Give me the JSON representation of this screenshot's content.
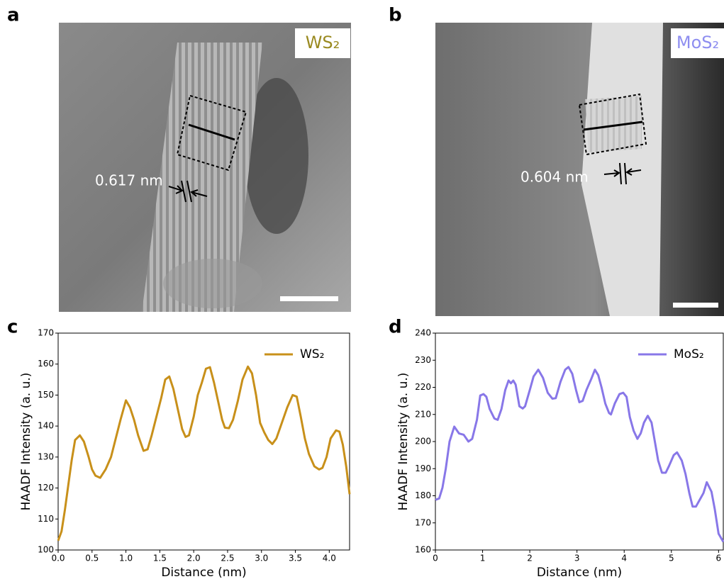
{
  "figure": {
    "panels": [
      {
        "letter": "a",
        "label": "WS₂",
        "measurement": "0.617 nm"
      },
      {
        "letter": "b",
        "label": "MoS₂",
        "measurement": "0.604 nm"
      }
    ]
  },
  "chart_data": [
    {
      "type": "line",
      "panel": "c",
      "xlabel": "Distance (nm)",
      "ylabel": "HAADF Intensity (a. u.)",
      "xlim": [
        0,
        4.3
      ],
      "ylim": [
        100,
        170
      ],
      "xticks": [
        {
          "value": 0,
          "label": "0.0"
        },
        0.5,
        {
          "value": 1,
          "label": "1.0"
        },
        1.5,
        {
          "value": 2,
          "label": "2.0"
        },
        2.5,
        {
          "value": 3,
          "label": "3.0"
        },
        3.5,
        {
          "value": 4,
          "label": "4.0"
        }
      ],
      "yticks": [
        100,
        110,
        120,
        130,
        140,
        150,
        160,
        170
      ],
      "grid": false,
      "legend": "upper right",
      "x": [
        0,
        0.05,
        0.1,
        0.15,
        0.2,
        0.25,
        0.32,
        0.38,
        0.45,
        0.5,
        0.55,
        0.62,
        0.7,
        0.78,
        0.85,
        0.92,
        1.0,
        1.06,
        1.12,
        1.18,
        1.26,
        1.32,
        1.38,
        1.45,
        1.52,
        1.58,
        1.64,
        1.7,
        1.76,
        1.83,
        1.88,
        1.93,
        2.0,
        2.06,
        2.12,
        2.18,
        2.24,
        2.3,
        2.36,
        2.42,
        2.46,
        2.52,
        2.58,
        2.65,
        2.72,
        2.8,
        2.86,
        2.92,
        2.98,
        3.04,
        3.1,
        3.16,
        3.22,
        3.3,
        3.38,
        3.46,
        3.52,
        3.58,
        3.64,
        3.7,
        3.78,
        3.85,
        3.9,
        3.96,
        4.02,
        4.1,
        4.15,
        4.2,
        4.25,
        4.3
      ],
      "series": [
        {
          "name": "WS₂",
          "color": "#c8901a",
          "values": [
            103,
            106,
            113,
            121,
            129,
            135.5,
            137,
            135,
            130,
            126,
            124,
            123.3,
            126,
            130,
            136,
            142,
            148.3,
            146,
            142,
            137,
            132,
            132.5,
            137,
            143,
            149,
            155,
            156,
            152,
            146,
            139,
            136.5,
            137,
            143,
            150,
            154,
            158.5,
            159,
            154,
            148,
            142,
            139.5,
            139.3,
            142,
            148,
            155,
            159.2,
            157,
            150,
            141,
            138,
            135.5,
            134.2,
            136,
            141,
            146,
            150,
            149.5,
            143,
            136,
            131,
            127,
            126,
            126.5,
            130,
            136,
            138.6,
            138.2,
            134,
            127,
            118
          ]
        }
      ]
    },
    {
      "type": "line",
      "panel": "d",
      "xlabel": "Distance (nm)",
      "ylabel": "HAADF Intensity (a. u.)",
      "xlim": [
        0,
        6.1
      ],
      "ylim": [
        160,
        240
      ],
      "xticks": [
        0,
        1,
        2,
        3,
        4,
        5,
        6
      ],
      "yticks": [
        160,
        170,
        180,
        190,
        200,
        210,
        220,
        230,
        240
      ],
      "grid": false,
      "legend": "upper right",
      "x": [
        0,
        0.08,
        0.15,
        0.22,
        0.3,
        0.4,
        0.5,
        0.6,
        0.7,
        0.78,
        0.88,
        0.95,
        1.02,
        1.08,
        1.15,
        1.25,
        1.32,
        1.4,
        1.48,
        1.55,
        1.6,
        1.65,
        1.7,
        1.78,
        1.85,
        1.9,
        2.0,
        2.08,
        2.18,
        2.28,
        2.38,
        2.48,
        2.55,
        2.65,
        2.75,
        2.82,
        2.9,
        2.98,
        3.05,
        3.12,
        3.2,
        3.3,
        3.38,
        3.45,
        3.52,
        3.6,
        3.68,
        3.72,
        3.8,
        3.9,
        3.98,
        4.05,
        4.12,
        4.2,
        4.28,
        4.35,
        4.42,
        4.5,
        4.58,
        4.65,
        4.72,
        4.8,
        4.88,
        4.95,
        5.05,
        5.12,
        5.22,
        5.3,
        5.38,
        5.45,
        5.52,
        5.6,
        5.68,
        5.75,
        5.85,
        5.92,
        6.0,
        6.1
      ],
      "series": [
        {
          "name": "MoS₂",
          "color": "#8877e8",
          "values": [
            178.5,
            179,
            183,
            190,
            200,
            205.5,
            203,
            202.5,
            200,
            201,
            208,
            217,
            217.5,
            216.5,
            212,
            208.5,
            208,
            212,
            219,
            222.5,
            221.5,
            222.5,
            221,
            213,
            212.2,
            213,
            219,
            224,
            226.5,
            223.5,
            218,
            215.8,
            216,
            222,
            226.5,
            227.5,
            225,
            219,
            214.5,
            215,
            219,
            223,
            226.5,
            224.5,
            220,
            214,
            210.5,
            210,
            214,
            217.5,
            218,
            216.5,
            209,
            204,
            201,
            203,
            207,
            209.5,
            207,
            200,
            193,
            188.5,
            188.5,
            191,
            195,
            196,
            193,
            188,
            181,
            176,
            176,
            178.5,
            181,
            185,
            181.5,
            175,
            166,
            163
          ]
        }
      ]
    }
  ]
}
